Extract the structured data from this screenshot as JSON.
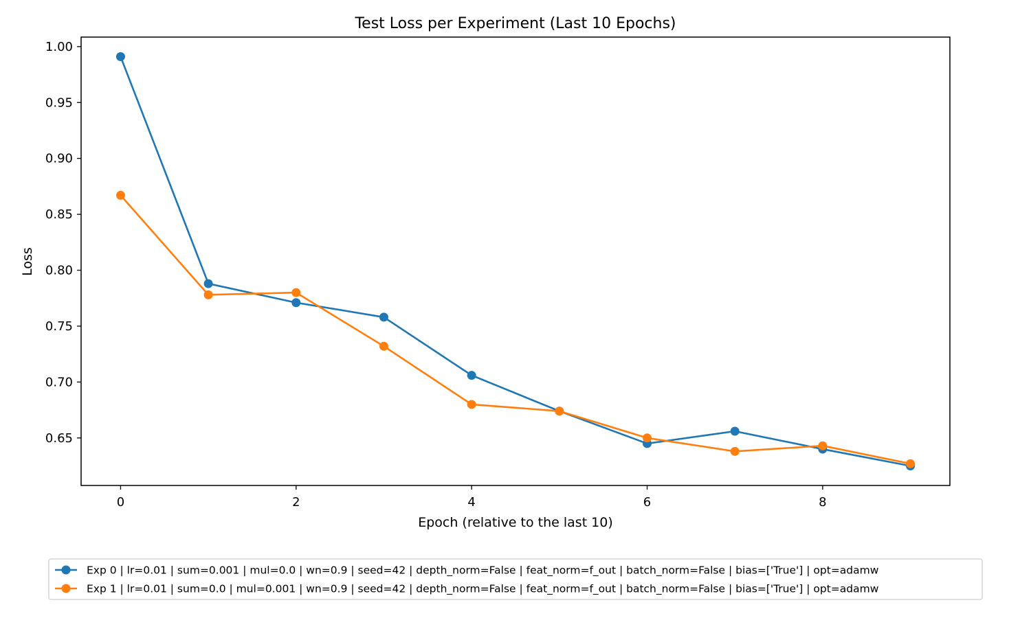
{
  "chart_data": {
    "type": "line",
    "title": "Test Loss per Experiment (Last 10 Epochs)",
    "xlabel": "Epoch (relative to the last 10)",
    "ylabel": "Loss",
    "xlim": [
      -0.45,
      9.45
    ],
    "ylim": [
      0.6075,
      1.0085
    ],
    "xticks": [
      0,
      2,
      4,
      6,
      8
    ],
    "xtick_labels": [
      "0",
      "2",
      "4",
      "6",
      "8"
    ],
    "yticks": [
      0.65,
      0.7,
      0.75,
      0.8,
      0.85,
      0.9,
      0.95,
      1.0
    ],
    "ytick_labels": [
      "0.65",
      "0.70",
      "0.75",
      "0.80",
      "0.85",
      "0.90",
      "0.95",
      "1.00"
    ],
    "grid": false,
    "legend_position": "bottom-center, below plot",
    "x": [
      0,
      1,
      2,
      3,
      4,
      5,
      6,
      7,
      8,
      9
    ],
    "series": [
      {
        "name": "Exp 0 | lr=0.01 | sum=0.001 | mul=0.0 | wn=0.9 | seed=42 | depth_norm=False | feat_norm=f_out | batch_norm=False | bias=['True'] | opt=adamw",
        "color": "#1f77b4",
        "marker": "circle",
        "values": [
          0.991,
          0.788,
          0.771,
          0.758,
          0.706,
          0.674,
          0.645,
          0.656,
          0.64,
          0.625
        ]
      },
      {
        "name": "Exp 1 | lr=0.01 | sum=0.0 | mul=0.001 | wn=0.9 | seed=42 | depth_norm=False | feat_norm=f_out | batch_norm=False | bias=['True'] | opt=adamw",
        "color": "#ff7f0e",
        "marker": "circle",
        "values": [
          0.867,
          0.778,
          0.78,
          0.732,
          0.68,
          0.674,
          0.65,
          0.638,
          0.643,
          0.627
        ]
      }
    ]
  }
}
